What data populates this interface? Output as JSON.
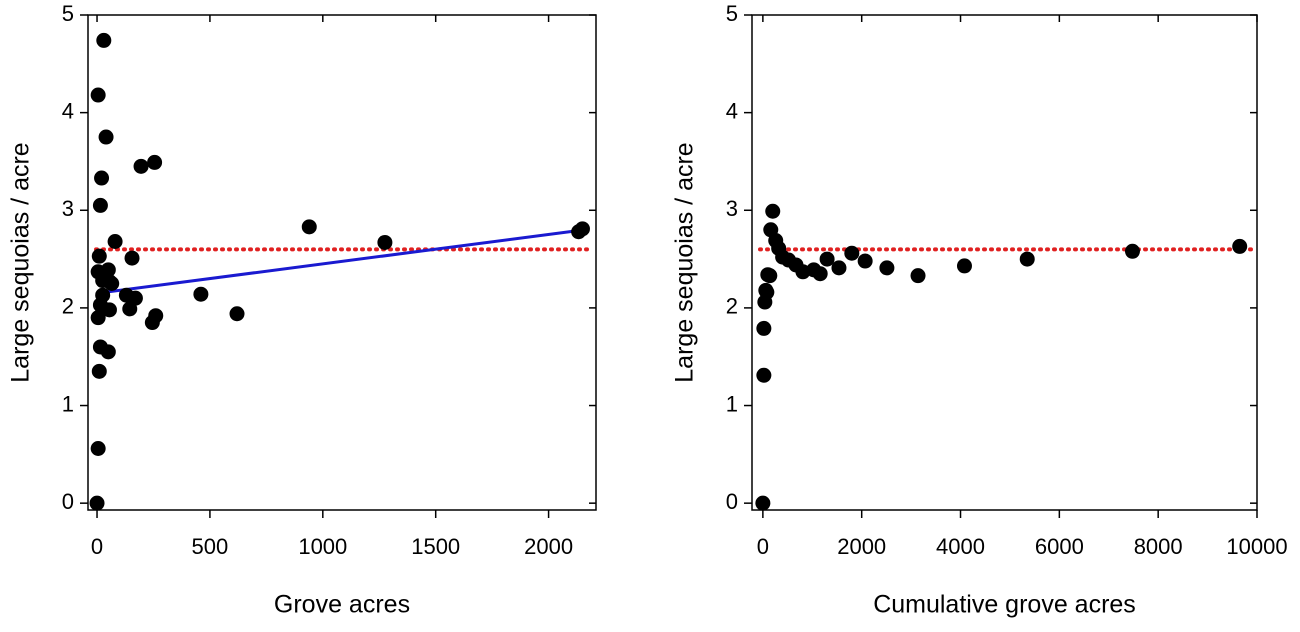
{
  "chart_data": [
    {
      "type": "scatter",
      "xlabel": "Grove acres",
      "ylabel": "Large sequoias / acre",
      "xlim": [
        -40,
        2210
      ],
      "ylim": [
        -0.07,
        5
      ],
      "xticks": [
        0,
        500,
        1000,
        1500,
        2000
      ],
      "yticks": [
        0,
        1,
        2,
        3,
        4,
        5
      ],
      "series": [
        {
          "color": "#000000",
          "x": [
            0,
            5,
            5,
            30,
            40,
            20,
            15,
            10,
            5,
            25,
            50,
            55,
            25,
            5,
            15,
            55,
            15,
            50,
            10,
            80,
            65,
            130,
            155,
            145,
            170,
            195,
            255,
            245,
            260,
            460,
            620,
            940,
            1275,
            2133,
            2150
          ],
          "values": [
            0,
            0.56,
            4.18,
            4.74,
            3.75,
            3.33,
            3.05,
            2.53,
            2.37,
            2.28,
            2.39,
            2.27,
            2.13,
            1.9,
            2.03,
            1.98,
            1.6,
            1.55,
            1.35,
            2.68,
            2.25,
            2.13,
            2.51,
            1.99,
            2.1,
            3.45,
            3.49,
            1.85,
            1.92,
            2.14,
            1.94,
            2.83,
            2.67,
            2.78,
            2.81
          ]
        }
      ],
      "reference_line": {
        "y": 2.6,
        "color": "#e02020"
      },
      "fit_line": {
        "x": [
          0,
          2160
        ],
        "y": [
          2.15,
          2.8
        ],
        "color": "#1a1ad0"
      }
    },
    {
      "type": "scatter",
      "xlabel": "Cumulative grove acres",
      "ylabel": "Large sequoias / acre",
      "xlim": [
        -220,
        10000
      ],
      "ylim": [
        -0.07,
        5
      ],
      "xticks": [
        0,
        2000,
        4000,
        6000,
        8000,
        10000
      ],
      "yticks": [
        0,
        1,
        2,
        3,
        4,
        5
      ],
      "series": [
        {
          "color": "#000000",
          "x": [
            0,
            20,
            20,
            40,
            60,
            80,
            100,
            140,
            160,
            200,
            260,
            320,
            400,
            520,
            670,
            810,
            1030,
            1160,
            1300,
            1540,
            1800,
            2070,
            2510,
            3140,
            4080,
            5350,
            7480,
            9650
          ],
          "values": [
            0,
            1.31,
            1.79,
            2.06,
            2.18,
            2.16,
            2.34,
            2.33,
            2.8,
            2.99,
            2.69,
            2.61,
            2.52,
            2.49,
            2.44,
            2.37,
            2.39,
            2.35,
            2.5,
            2.41,
            2.56,
            2.48,
            2.41,
            2.33,
            2.43,
            2.5,
            2.58,
            2.63
          ]
        }
      ],
      "reference_line": {
        "y": 2.6,
        "color": "#e02020"
      }
    }
  ]
}
